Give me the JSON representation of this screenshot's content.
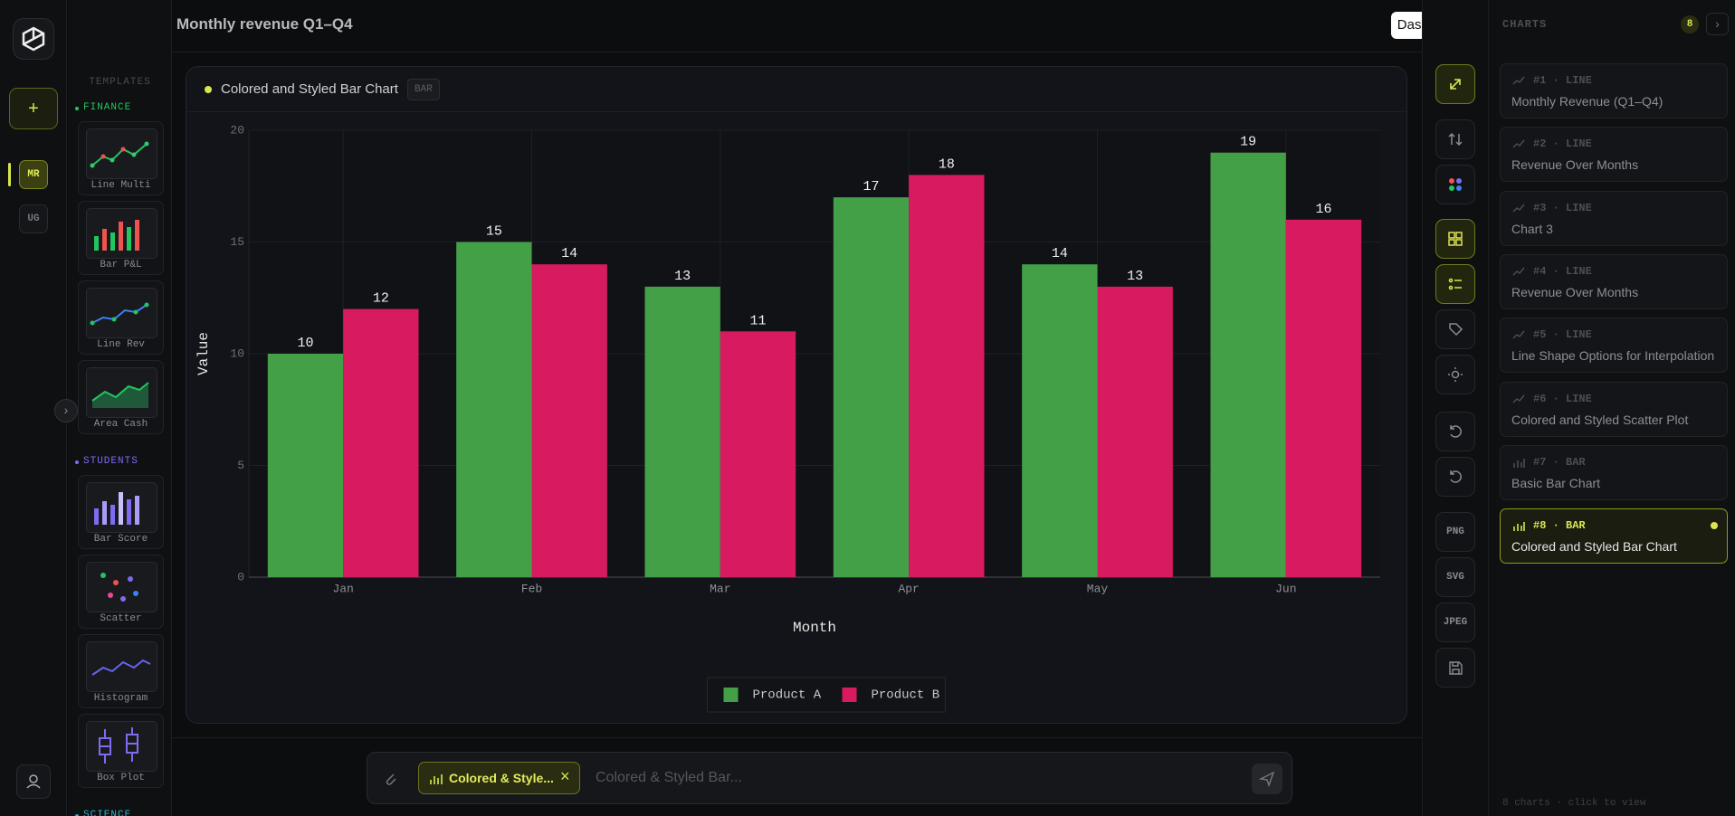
{
  "header": {
    "title": "Monthly revenue Q1–Q4",
    "button": "Dashboard"
  },
  "rail": {
    "items": [
      "MR",
      "UG"
    ]
  },
  "templates": {
    "heading": "TEMPLATES",
    "sections": [
      {
        "name": "FINANCE",
        "items": [
          "Line Multi",
          "Bar P&L",
          "Line Rev",
          "Area Cash"
        ]
      },
      {
        "name": "STUDENTS",
        "items": [
          "Bar Score",
          "Scatter",
          "Histogram",
          "Box Plot"
        ]
      },
      {
        "name": "SCIENCE",
        "items": []
      }
    ]
  },
  "chart_card": {
    "title": "Colored and Styled Bar Chart",
    "badge": "BAR"
  },
  "chart_data": {
    "type": "bar",
    "categories": [
      "Jan",
      "Feb",
      "Mar",
      "Apr",
      "May",
      "Jun"
    ],
    "series": [
      {
        "name": "Product A",
        "color": "#43a047",
        "values": [
          10,
          15,
          13,
          17,
          14,
          19
        ]
      },
      {
        "name": "Product B",
        "color": "#d81b60",
        "values": [
          12,
          14,
          11,
          18,
          13,
          16
        ]
      }
    ],
    "xlabel": "Month",
    "ylabel": "Value",
    "ylim": [
      0,
      20
    ],
    "yticks": [
      0,
      5,
      10,
      15,
      20
    ],
    "grid": true,
    "legend": "bottom"
  },
  "toolbar": {
    "exports": [
      "PNG",
      "SVG",
      "JPEG"
    ]
  },
  "charts_panel": {
    "heading": "CHARTS",
    "count": "8",
    "items": [
      {
        "number": "#1",
        "kind": "LINE",
        "title": "Monthly Revenue (Q1–Q4)"
      },
      {
        "number": "#2",
        "kind": "LINE",
        "title": "Revenue Over Months"
      },
      {
        "number": "#3",
        "kind": "LINE",
        "title": "Chart 3"
      },
      {
        "number": "#4",
        "kind": "LINE",
        "title": "Revenue Over Months"
      },
      {
        "number": "#5",
        "kind": "LINE",
        "title": "Line Shape Options for Interpolation"
      },
      {
        "number": "#6",
        "kind": "LINE",
        "title": "Colored and Styled Scatter Plot"
      },
      {
        "number": "#7",
        "kind": "BAR",
        "title": "Basic Bar Chart"
      },
      {
        "number": "#8",
        "kind": "BAR",
        "title": "Colored and Styled Bar Chart"
      }
    ],
    "footer": "8 charts · click to view"
  },
  "composer": {
    "chip": "Colored & Style...",
    "placeholder": "Colored & Styled Bar..."
  }
}
